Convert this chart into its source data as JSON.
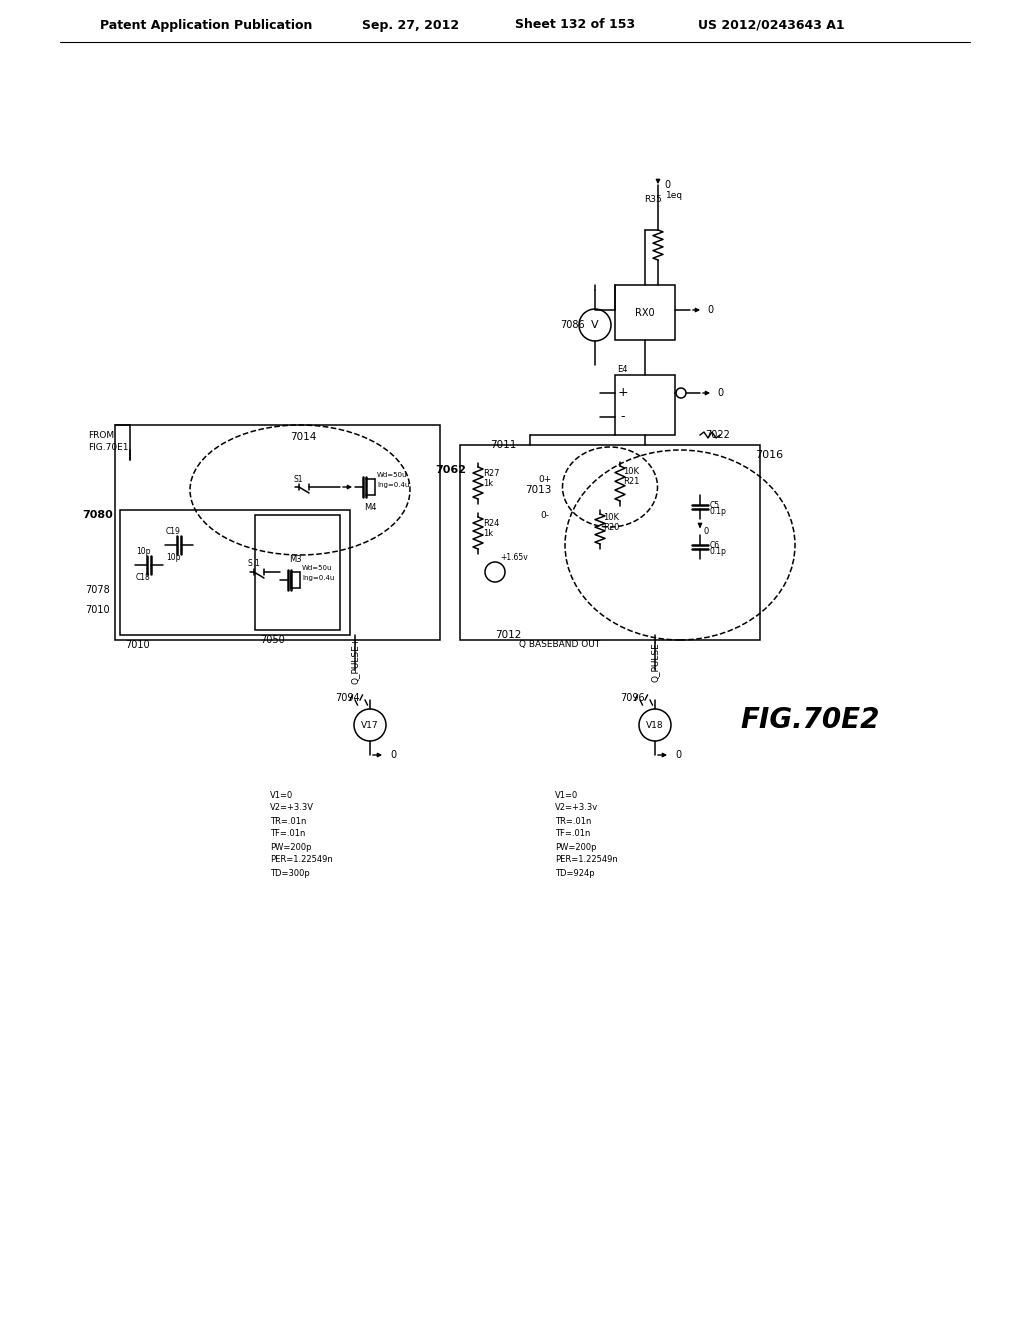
{
  "bg_color": "#ffffff",
  "header_text": "Patent Application Publication",
  "header_date": "Sep. 27, 2012",
  "header_sheet": "Sheet 132 of 153",
  "header_patent": "US 2012/0243643 A1",
  "fig_label": "FIG.70E2",
  "line_color": "#000000"
}
